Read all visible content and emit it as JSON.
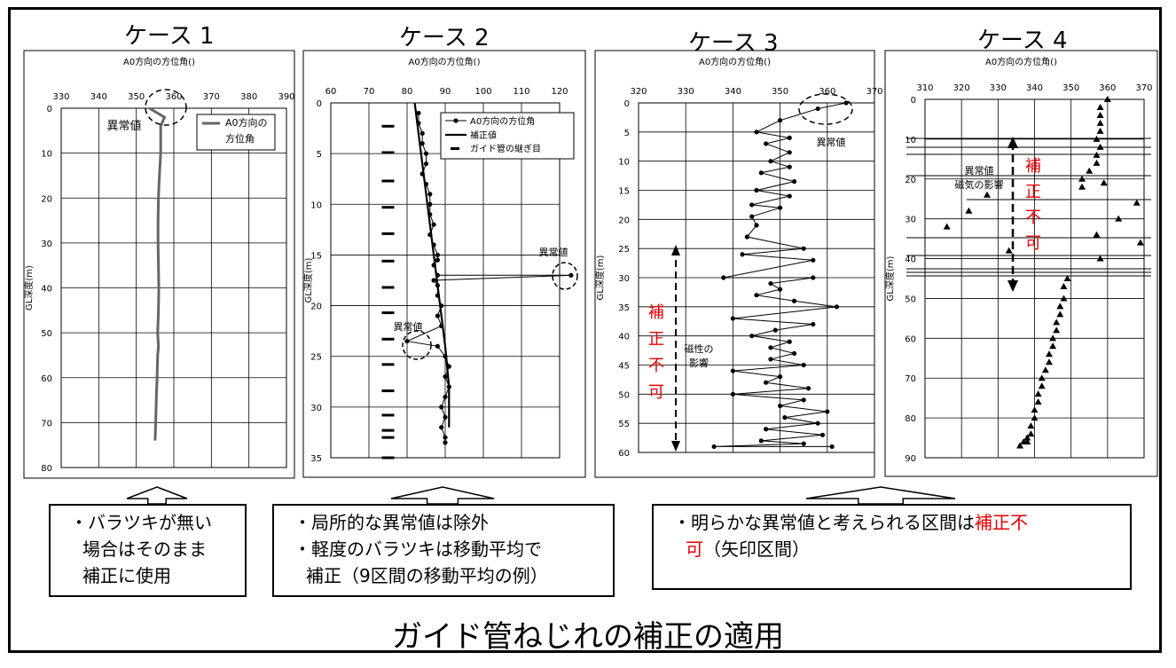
{
  "title": "ガイド管ねじれの補正の適用",
  "colors": {
    "axis": "#000000",
    "grid": "#000000",
    "series": "#333333",
    "case1_series": "#666666",
    "highlight": "#e60000"
  },
  "chart_data": [
    {
      "type": "line",
      "title": "ケース 1",
      "subtitle": "A0方向の方位角()",
      "xlabel": "",
      "ylabel": "GL深度(m)",
      "xlim": [
        330,
        390
      ],
      "ylim": [
        0,
        80
      ],
      "x_ticks": [
        "330",
        "340",
        "350",
        "360",
        "370",
        "380",
        "390"
      ],
      "y_ticks": [
        "0",
        "10",
        "20",
        "30",
        "40",
        "50",
        "60",
        "70",
        "80"
      ],
      "grid": true,
      "legend_position": "top-right",
      "series": [
        {
          "name": "A0方向の方位角",
          "x": [
            353.5,
            357.5,
            356.5,
            356.5,
            356.5,
            356.3,
            356.1,
            355.9,
            355.8,
            355.8,
            355.9,
            356.0,
            355.9,
            355.7,
            355.9,
            355.7,
            355.6,
            355.5,
            355.4,
            355.3,
            355.2,
            355.1,
            355.0
          ],
          "y": [
            0,
            2,
            4,
            7,
            10,
            13,
            16,
            20,
            25,
            30,
            35,
            40,
            45,
            50,
            53,
            55,
            58,
            61,
            63,
            66,
            69,
            72,
            74
          ]
        }
      ],
      "annotations": [
        "異常値"
      ]
    },
    {
      "type": "line",
      "title": "ケース 2",
      "subtitle": "A0方向の方位角()",
      "xlabel": "",
      "ylabel": "GL深度(m)",
      "xlim": [
        60,
        120
      ],
      "ylim": [
        0,
        35
      ],
      "x_ticks": [
        "60",
        "70",
        "80",
        "90",
        "100",
        "110",
        "120"
      ],
      "y_ticks": [
        "0",
        "5",
        "10",
        "15",
        "20",
        "25",
        "30",
        "35"
      ],
      "grid": true,
      "legend_position": "top-right",
      "series": [
        {
          "name": "A0方向の方位角",
          "x": [
            83,
            83,
            84,
            84,
            85,
            85,
            84,
            85,
            86,
            86,
            86,
            87,
            86,
            87,
            88,
            88,
            87,
            88,
            123,
            87,
            88,
            88,
            89,
            88,
            89,
            80,
            88,
            90,
            91,
            90,
            91,
            90,
            89,
            90,
            89,
            90,
            90
          ],
          "y": [
            1,
            2,
            3,
            4,
            5,
            6,
            7,
            8,
            9,
            10,
            11,
            12,
            13,
            14,
            15,
            15.5,
            16,
            17,
            17,
            17.5,
            18,
            19,
            20,
            21,
            22,
            23.5,
            24,
            25,
            26,
            27,
            28,
            29,
            30,
            31,
            32,
            33,
            33.5
          ]
        },
        {
          "name": "補正値",
          "x": [
            82,
            83,
            84,
            85,
            86,
            87,
            88,
            89,
            90,
            91,
            91
          ],
          "y": [
            0,
            3,
            6,
            9,
            12,
            15,
            18,
            21,
            24,
            28,
            32
          ]
        },
        {
          "name": "ガイド管の継ぎ目",
          "x": [
            75,
            75,
            75,
            75,
            75,
            75,
            75,
            75,
            75,
            75,
            75,
            75,
            75,
            75,
            75
          ],
          "y": [
            2.3,
            4.9,
            7.7,
            10.3,
            12.9,
            15.6,
            18.2,
            20.7,
            23.3,
            25.8,
            28.4,
            30.8,
            32.3,
            33.0,
            35
          ]
        }
      ],
      "annotations": [
        "異常値",
        "異常値"
      ]
    },
    {
      "type": "line",
      "title": "ケース 3",
      "subtitle": "A0方向の方位角()",
      "xlabel": "",
      "ylabel": "GL深度(m)",
      "xlim": [
        320,
        370
      ],
      "ylim": [
        0,
        60
      ],
      "x_ticks": [
        "320",
        "330",
        "340",
        "350",
        "360",
        "370"
      ],
      "y_ticks": [
        "0",
        "5",
        "10",
        "15",
        "20",
        "25",
        "30",
        "35",
        "40",
        "45",
        "50",
        "55",
        "60"
      ],
      "grid": true,
      "legend_position": "none",
      "series": [
        {
          "name": "",
          "x": [
            364,
            358,
            350,
            345,
            352,
            347,
            352,
            348,
            352,
            346,
            353,
            345,
            352,
            344,
            350,
            344,
            345,
            343,
            355,
            342,
            357,
            338,
            357,
            348,
            350,
            345,
            353,
            362,
            340,
            357,
            349,
            344,
            352,
            348,
            353,
            348,
            355,
            340,
            350,
            347,
            356,
            340,
            355,
            350,
            360,
            351,
            358,
            347,
            359,
            346,
            355,
            336,
            361
          ],
          "y": [
            0,
            1,
            3,
            5,
            6,
            7,
            8.5,
            10,
            11,
            12,
            13.5,
            15,
            16,
            17.5,
            18,
            19.5,
            21,
            23,
            25,
            26,
            27,
            30,
            30,
            31,
            32,
            33,
            34,
            35,
            37,
            38,
            39,
            40,
            41,
            42,
            43,
            44,
            45,
            46,
            47,
            48,
            49,
            50,
            51,
            52,
            53,
            54,
            55,
            56,
            57,
            58,
            58.5,
            59,
            59
          ]
        }
      ],
      "annotations": [
        "異常値",
        "補正不可",
        "磁性の影響"
      ]
    },
    {
      "type": "scatter",
      "title": "ケース 4",
      "subtitle": "A0方向の方位角()",
      "xlabel": "",
      "ylabel": "GL深度(m)",
      "xlim": [
        310,
        370
      ],
      "ylim": [
        0,
        90
      ],
      "x_ticks": [
        "310",
        "320",
        "330",
        "340",
        "350",
        "360",
        "370"
      ],
      "y_ticks": [
        "0",
        "10",
        "20",
        "30",
        "40",
        "50",
        "60",
        "70",
        "80",
        "90"
      ],
      "grid": true,
      "legend_position": "none",
      "series": [
        {
          "name": "",
          "x": [
            360,
            358,
            358,
            358,
            358,
            357,
            358,
            357,
            357,
            355,
            353,
            359,
            353,
            327,
            368,
            322,
            363,
            316,
            357,
            369,
            333,
            358,
            349,
            348,
            348,
            347,
            347,
            346,
            346,
            345,
            345,
            344,
            344,
            343,
            342,
            342,
            341,
            341,
            340,
            340,
            339,
            339,
            338,
            338,
            337,
            336
          ],
          "y": [
            0,
            2,
            4,
            6,
            8,
            10,
            12,
            14,
            16,
            18,
            20,
            21,
            22,
            24,
            26,
            28,
            30,
            32,
            34,
            36,
            38,
            40,
            45,
            47,
            50,
            52,
            54,
            56,
            58,
            60,
            62,
            64,
            66,
            68,
            70,
            72,
            74,
            76,
            78,
            80,
            82,
            84,
            85,
            86,
            86,
            87
          ]
        }
      ],
      "annotations": [
        "異常値",
        "磁気の影響",
        "補正不可"
      ]
    }
  ],
  "notes": [
    {
      "lines": [
        "・バラツキが無い",
        "場合はそのまま",
        "補正に使用"
      ]
    },
    {
      "lines": [
        "・局所的な異常値は除外",
        "・軽度のバラツキは移動平均で",
        "補正（9区間の移動平均の例）"
      ]
    },
    {
      "prefix": "・明らかな異常値と考えられる区間は",
      "red": "補正不",
      "red2": "可",
      "suffix": "（矢印区間）"
    }
  ],
  "panel_labels": {
    "case1_legend": [
      "A0方向の",
      "方位角"
    ],
    "case1_anomaly": "異常値",
    "case2_anomaly1": "異常値",
    "case2_anomaly2": "異常値",
    "case3_anomaly": "異常値",
    "case3_fix": [
      "補",
      "正",
      "不",
      "可"
    ],
    "case3_magnet": [
      "磁性の",
      "影響"
    ],
    "case4_anomaly": [
      "異常値",
      "磁気の影響"
    ],
    "case4_fix": [
      "補",
      "正",
      "不",
      "可"
    ]
  }
}
